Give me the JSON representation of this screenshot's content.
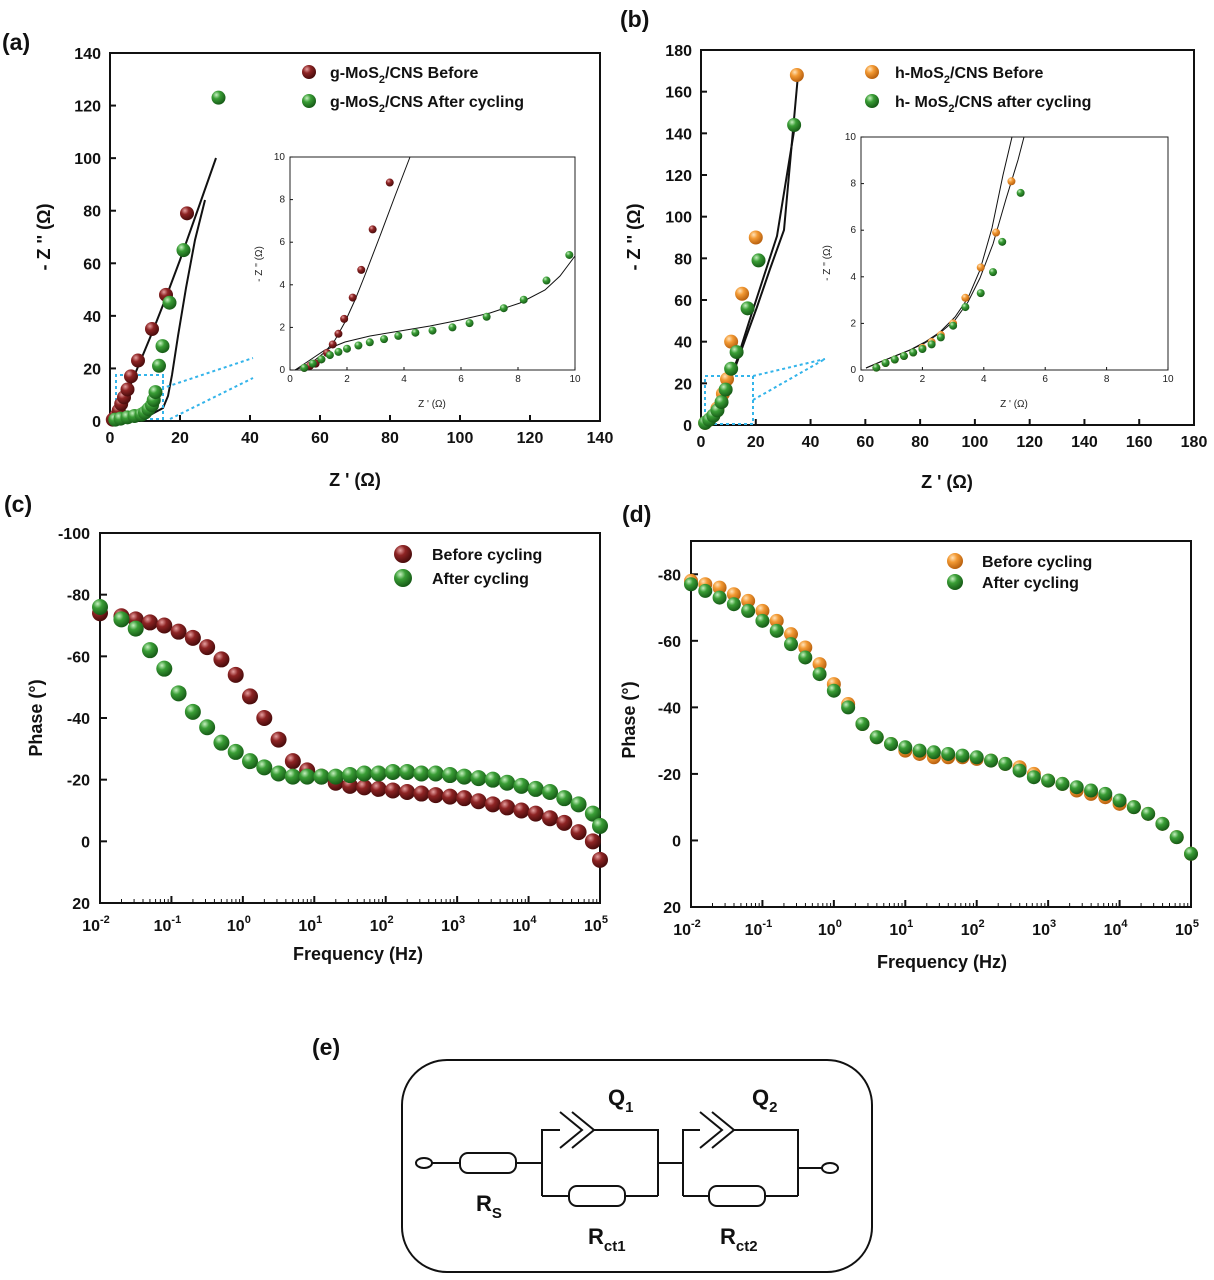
{
  "colors": {
    "maroon": "#7b1a1a",
    "green": "#2e8b2e",
    "orange": "#f0922c",
    "zoom_box": "#33b4ea"
  },
  "chart_data": [
    {
      "id": "a",
      "panel_label": "(a)",
      "type": "scatter",
      "xlabel": "Z ' (Ω)",
      "ylabel": "- Z '' (Ω)",
      "xlim": [
        0,
        140
      ],
      "ylim": [
        0,
        140
      ],
      "xticks": [
        0,
        20,
        40,
        60,
        80,
        100,
        120,
        140
      ],
      "yticks": [
        0,
        20,
        40,
        60,
        80,
        100,
        120,
        140
      ],
      "legend_position": "top-right",
      "series": [
        {
          "name": "g-MoS2/CNS Before",
          "label_main": "g-MoS",
          "label_sub": "2",
          "label_rest": "/CNS Before",
          "color": "#7b1a1a",
          "x": [
            0.8,
            1.2,
            1.8,
            2.5,
            3.2,
            4.0,
            5.0,
            6.0,
            8.0,
            12.0,
            16.0,
            22.0
          ],
          "y": [
            0.5,
            1.0,
            2.0,
            4.0,
            6.5,
            9.0,
            12.0,
            17.0,
            23.0,
            35.0,
            48.0,
            79.0
          ]
        },
        {
          "name": "g-MoS2/CNS After cycling",
          "label_main": "g-MoS",
          "label_sub": "2",
          "label_rest": "/CNS After cycling",
          "color": "#2e8b2e",
          "x": [
            1.5,
            3,
            5,
            7,
            9,
            10,
            11,
            12,
            12.5,
            13,
            14,
            15,
            17,
            21,
            31
          ],
          "y": [
            0.5,
            0.9,
            1.4,
            1.9,
            2.4,
            3.2,
            4.5,
            6.0,
            8.0,
            11.0,
            21.0,
            28.5,
            45.0,
            65.0,
            123.0
          ]
        }
      ],
      "inset": {
        "xlabel": "Z ' (Ω)",
        "ylabel": "- Z '' (Ω)",
        "xlim": [
          0,
          10
        ],
        "ylim": [
          0,
          10
        ],
        "xticks": [
          0,
          2,
          4,
          6,
          8,
          10
        ],
        "yticks": [
          0,
          2,
          4,
          6,
          8,
          10
        ],
        "series": [
          {
            "name": "g-MoS2/CNS Before",
            "x": [
              0.5,
              0.7,
              0.9,
              1.1,
              1.3,
              1.5,
              1.7,
              1.9,
              2.2,
              2.5,
              2.9,
              3.5
            ],
            "y": [
              0.1,
              0.2,
              0.3,
              0.5,
              0.8,
              1.2,
              1.7,
              2.4,
              3.4,
              4.7,
              6.6,
              8.8
            ]
          },
          {
            "name": "g-MoS2/CNS After cycling",
            "x": [
              0.5,
              0.8,
              1.1,
              1.4,
              1.7,
              2.0,
              2.4,
              2.8,
              3.3,
              3.8,
              4.4,
              5.0,
              5.7,
              6.3,
              6.9,
              7.5,
              8.2,
              9.0,
              9.8
            ],
            "y": [
              0.1,
              0.3,
              0.5,
              0.7,
              0.85,
              1.0,
              1.15,
              1.3,
              1.45,
              1.6,
              1.75,
              1.85,
              2.0,
              2.2,
              2.5,
              2.9,
              3.3,
              4.2,
              5.4
            ]
          }
        ]
      }
    },
    {
      "id": "b",
      "panel_label": "(b)",
      "type": "scatter",
      "xlabel": "Z ' (Ω)",
      "ylabel": "- Z '' (Ω)",
      "xlim": [
        0,
        180
      ],
      "ylim": [
        0,
        180
      ],
      "xticks": [
        0,
        20,
        40,
        60,
        80,
        100,
        120,
        140,
        160,
        180
      ],
      "yticks": [
        0,
        20,
        40,
        60,
        80,
        100,
        120,
        140,
        160,
        180
      ],
      "legend_position": "top-right",
      "series": [
        {
          "name": "h-MoS2/CNS Before",
          "label_main": "h-MoS",
          "label_sub": "2",
          "label_rest": "/CNS Before",
          "color": "#f0922c",
          "x": [
            1.5,
            3,
            4.5,
            6,
            8,
            9.5,
            11,
            15,
            20,
            35
          ],
          "y": [
            1,
            2.5,
            4.5,
            8,
            15,
            22,
            40,
            63,
            90,
            168
          ]
        },
        {
          "name": "h- MoS2/CNS after cycling",
          "label_main": "h- MoS",
          "label_sub": "2",
          "label_rest": "/CNS after cycling",
          "color": "#2e8b2e",
          "x": [
            1.5,
            3,
            4.5,
            6,
            7.5,
            9,
            11,
            13,
            17,
            21,
            34
          ],
          "y": [
            1,
            2.5,
            4.5,
            7,
            11,
            17,
            27,
            35,
            56,
            79,
            144
          ]
        }
      ],
      "inset": {
        "xlabel": "Z ' (Ω)",
        "ylabel": "- Z '' (Ω)",
        "xlim": [
          0,
          10
        ],
        "ylim": [
          0,
          10
        ],
        "xticks": [
          0,
          2,
          4,
          6,
          8,
          10
        ],
        "yticks": [
          0,
          2,
          4,
          6,
          8,
          10
        ],
        "series": [
          {
            "name": "h-MoS2/CNS Before",
            "x": [
              0.5,
              0.8,
              1.1,
              1.4,
              1.7,
              2.0,
              2.3,
              2.6,
              3.0,
              3.4,
              3.9,
              4.4,
              4.9
            ],
            "y": [
              0.1,
              0.3,
              0.45,
              0.6,
              0.75,
              0.95,
              1.2,
              1.5,
              2.0,
              3.1,
              4.4,
              5.9,
              8.1
            ]
          },
          {
            "name": "h- MoS2/CNS after cycling",
            "x": [
              0.5,
              0.8,
              1.1,
              1.4,
              1.7,
              2.0,
              2.3,
              2.6,
              3.0,
              3.4,
              3.9,
              4.3,
              4.6,
              5.2
            ],
            "y": [
              0.1,
              0.3,
              0.45,
              0.6,
              0.75,
              0.9,
              1.1,
              1.4,
              1.9,
              2.7,
              3.3,
              4.2,
              5.5,
              7.6
            ]
          }
        ]
      }
    },
    {
      "id": "c",
      "panel_label": "(c)",
      "type": "scatter",
      "xlabel": "Frequency (Hz)",
      "ylabel": "Phase (°)",
      "xscale": "log",
      "xlim": [
        0.01,
        100000
      ],
      "ylim": [
        20,
        -100
      ],
      "xticks_exp": [
        -2,
        -1,
        0,
        1,
        2,
        3,
        4,
        5
      ],
      "yticks": [
        -100,
        -80,
        -60,
        -40,
        -20,
        0,
        20
      ],
      "legend_position": "top-right",
      "series": [
        {
          "name": "Before cycling",
          "color": "#7b1a1a",
          "x_log": [
            -2,
            -1.7,
            -1.5,
            -1.3,
            -1.1,
            -0.9,
            -0.7,
            -0.5,
            -0.3,
            -0.1,
            0.1,
            0.3,
            0.5,
            0.7,
            0.9,
            1.1,
            1.3,
            1.5,
            1.7,
            1.9,
            2.1,
            2.3,
            2.5,
            2.7,
            2.9,
            3.1,
            3.3,
            3.5,
            3.7,
            3.9,
            4.1,
            4.3,
            4.5,
            4.7,
            4.9,
            5.0
          ],
          "y": [
            -74,
            -73,
            -72,
            -71,
            -70,
            -68,
            -66,
            -63,
            -59,
            -54,
            -47,
            -40,
            -33,
            -26,
            -23,
            -21,
            -19,
            -18,
            -17.5,
            -17,
            -16.5,
            -16,
            -15.5,
            -15,
            -14.5,
            -14,
            -13,
            -12,
            -11,
            -10,
            -9,
            -7.5,
            -6,
            -3,
            0,
            6
          ]
        },
        {
          "name": "After cycling",
          "color": "#2e8b2e",
          "x_log": [
            -2,
            -1.7,
            -1.5,
            -1.3,
            -1.1,
            -0.9,
            -0.7,
            -0.5,
            -0.3,
            -0.1,
            0.1,
            0.3,
            0.5,
            0.7,
            0.9,
            1.1,
            1.3,
            1.5,
            1.7,
            1.9,
            2.1,
            2.3,
            2.5,
            2.7,
            2.9,
            3.1,
            3.3,
            3.5,
            3.7,
            3.9,
            4.1,
            4.3,
            4.5,
            4.7,
            4.9,
            5.0
          ],
          "y": [
            -76,
            -72,
            -69,
            -62,
            -56,
            -48,
            -42,
            -37,
            -32,
            -29,
            -26,
            -24,
            -22,
            -21,
            -21,
            -21,
            -21,
            -21.5,
            -22,
            -22,
            -22.5,
            -22.5,
            -22,
            -22,
            -21.5,
            -21,
            -20.5,
            -20,
            -19,
            -18,
            -17,
            -16,
            -14,
            -12,
            -9,
            -5
          ]
        }
      ]
    },
    {
      "id": "d",
      "panel_label": "(d)",
      "type": "scatter",
      "xlabel": "Frequency (Hz)",
      "ylabel": "Phase (°)",
      "xscale": "log",
      "xlim": [
        0.01,
        100000
      ],
      "ylim": [
        20,
        -90
      ],
      "xticks_exp": [
        -2,
        -1,
        0,
        1,
        2,
        3,
        4,
        5
      ],
      "yticks": [
        -80,
        -60,
        -40,
        -20,
        0,
        20
      ],
      "legend_position": "top-left",
      "series": [
        {
          "name": "Before cycling",
          "color": "#f0922c",
          "x_log": [
            -2,
            -1.8,
            -1.6,
            -1.4,
            -1.2,
            -1.0,
            -0.8,
            -0.6,
            -0.4,
            -0.2,
            0.0,
            0.2,
            0.4,
            0.6,
            0.8,
            1.0,
            1.2,
            1.4,
            1.6,
            1.8,
            2.0,
            2.2,
            2.4,
            2.6,
            2.8,
            3.0,
            3.2,
            3.4,
            3.6,
            3.8,
            4.0,
            4.2,
            4.4,
            4.6,
            4.8,
            5.0
          ],
          "y": [
            -78,
            -77,
            -76,
            -74,
            -72,
            -69,
            -66,
            -62,
            -58,
            -53,
            -47,
            -41,
            -35,
            -31,
            -29,
            -27,
            -26,
            -25,
            -25,
            -25,
            -24.5,
            -24,
            -23,
            -22,
            -20,
            -18,
            -17,
            -15,
            -14,
            -13,
            -11,
            -10,
            -8,
            -5,
            -1,
            4
          ]
        },
        {
          "name": "After cycling",
          "color": "#2e8b2e",
          "x_log": [
            -2,
            -1.8,
            -1.6,
            -1.4,
            -1.2,
            -1.0,
            -0.8,
            -0.6,
            -0.4,
            -0.2,
            0.0,
            0.2,
            0.4,
            0.6,
            0.8,
            1.0,
            1.2,
            1.4,
            1.6,
            1.8,
            2.0,
            2.2,
            2.4,
            2.6,
            2.8,
            3.0,
            3.2,
            3.4,
            3.6,
            3.8,
            4.0,
            4.2,
            4.4,
            4.6,
            4.8,
            5.0
          ],
          "y": [
            -77,
            -75,
            -73,
            -71,
            -69,
            -66,
            -63,
            -59,
            -55,
            -50,
            -45,
            -40,
            -35,
            -31,
            -29,
            -28,
            -27,
            -26.5,
            -26,
            -25.5,
            -25,
            -24,
            -23,
            -21,
            -19,
            -18,
            -17,
            -16,
            -15,
            -14,
            -12,
            -10,
            -8,
            -5,
            -1,
            4
          ]
        }
      ]
    }
  ],
  "circuit": {
    "panel_label": "(e)",
    "rs_main": "R",
    "rs_sub": "S",
    "q1_main": "Q",
    "q1_sub": "1",
    "q2_main": "Q",
    "q2_sub": "2",
    "rct1_main": "R",
    "rct1_sub": "ct1",
    "rct2_main": "R",
    "rct2_sub": "ct2"
  }
}
